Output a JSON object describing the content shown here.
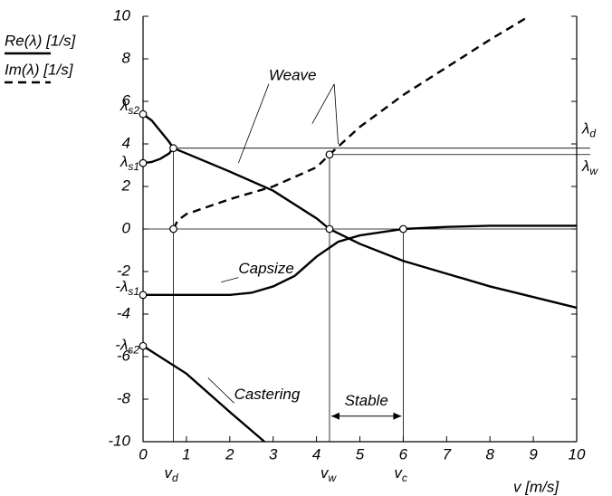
{
  "chart_data": {
    "type": "line",
    "x_label": "v  [m/s]",
    "xlim": [
      0,
      10
    ],
    "xticks": [
      0,
      1,
      2,
      3,
      4,
      5,
      6,
      7,
      8,
      9,
      10
    ],
    "ylim": [
      -10,
      10
    ],
    "yticks": [
      -10,
      -8,
      -6,
      -4,
      -2,
      0,
      2,
      4,
      6,
      8,
      10
    ],
    "legend": [
      {
        "label": "Re(λ) [1/s]",
        "style": "solid"
      },
      {
        "label": "Im(λ) [1/s]",
        "style": "dashed"
      }
    ],
    "series": [
      {
        "name": "Weave",
        "style": "solid",
        "color": "#000000",
        "x": [
          0.7,
          1,
          2,
          3,
          4,
          4.3,
          5,
          6,
          7,
          8,
          9,
          10
        ],
        "values": [
          3.8,
          3.55,
          2.7,
          1.8,
          0.5,
          0,
          -0.7,
          -1.5,
          -2.1,
          -2.7,
          -3.2,
          -3.7
        ]
      },
      {
        "style": "solid",
        "color": "#000000",
        "x": [
          0,
          0.2,
          0.4,
          0.6,
          0.7
        ],
        "values": [
          5.4,
          5.1,
          4.6,
          4.1,
          3.8
        ]
      },
      {
        "style": "solid",
        "color": "#000000",
        "x": [
          0,
          0.2,
          0.4,
          0.6,
          0.7
        ],
        "values": [
          3.1,
          3.15,
          3.3,
          3.55,
          3.8
        ]
      },
      {
        "name": "Capsize",
        "style": "solid",
        "color": "#000000",
        "x": [
          0,
          1,
          2,
          2.5,
          3,
          3.5,
          4,
          4.5,
          5,
          6,
          7,
          8,
          10
        ],
        "values": [
          -3.1,
          -3.1,
          -3.1,
          -3.0,
          -2.7,
          -2.2,
          -1.3,
          -0.6,
          -0.3,
          0,
          0.1,
          0.15,
          0.15
        ]
      },
      {
        "name": "Castering",
        "style": "solid",
        "color": "#000000",
        "x": [
          0,
          1,
          2,
          2.8
        ],
        "values": [
          -5.5,
          -6.8,
          -8.6,
          -10
        ]
      },
      {
        "style": "dashed",
        "color": "#000000",
        "x": [
          0.7,
          0.8,
          1,
          2,
          3,
          4,
          4.3,
          5,
          6,
          7,
          8,
          8.9
        ],
        "values": [
          0,
          0.4,
          0.7,
          1.4,
          2,
          2.9,
          3.5,
          4.8,
          6.3,
          7.6,
          8.9,
          10
        ]
      }
    ],
    "eigen_labels": [
      {
        "text": "λ",
        "sub": "s2",
        "value": 5.4
      },
      {
        "text": "λ",
        "sub": "s1",
        "value": 3.1
      },
      {
        "text": "-λ",
        "sub": "s1",
        "value": -3.1
      },
      {
        "text": "-λ",
        "sub": "s2",
        "value": -5.5
      }
    ],
    "right_labels": [
      {
        "text": "λ",
        "sub": "d",
        "value": 3.8
      },
      {
        "text": "λ",
        "sub": "w",
        "value": 3.5
      }
    ],
    "critical_speeds": [
      {
        "text": "v",
        "sub": "d",
        "value": 0.7,
        "top": 3.8
      },
      {
        "text": "v",
        "sub": "w",
        "value": 4.3,
        "top": 3.5
      },
      {
        "text": "v",
        "sub": "c",
        "value": 6,
        "top": 0
      }
    ],
    "markers": {
      "x": [
        0,
        0,
        0.7,
        0.7,
        4.3,
        4.3,
        6,
        0,
        0
      ],
      "y": [
        5.4,
        3.1,
        3.8,
        0,
        3.5,
        0,
        0,
        -3.1,
        -5.5
      ]
    },
    "stable": {
      "label": "Stable",
      "from": 4.3,
      "to": 6
    }
  }
}
